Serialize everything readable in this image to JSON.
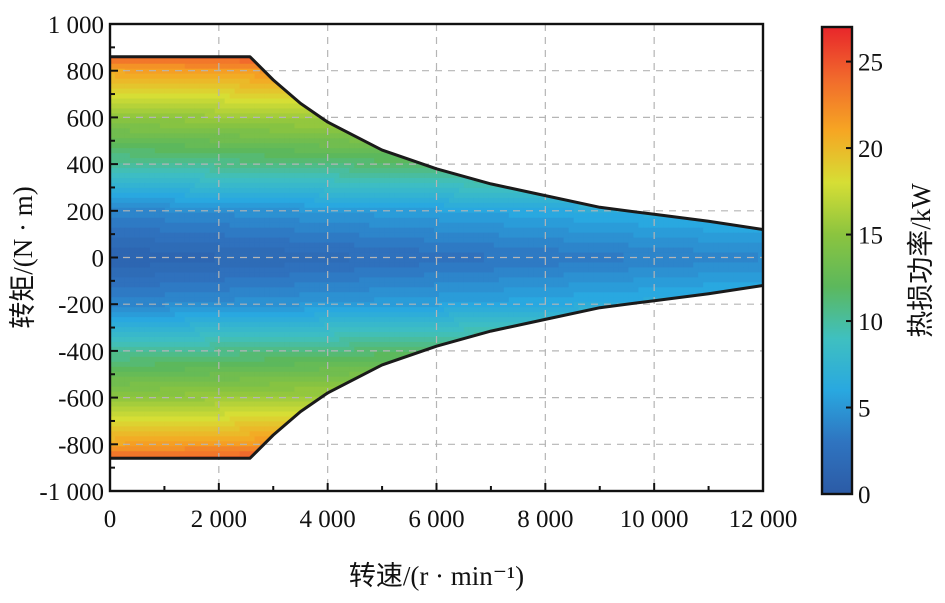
{
  "chart_data": {
    "type": "heatmap",
    "title": "",
    "xlabel": "转速/(r · min⁻¹)",
    "ylabel": "转矩/(N · m)",
    "colorbar_label": "热损功率/kW",
    "xlim": [
      0,
      12000
    ],
    "ylim": [
      -1000,
      1000
    ],
    "clim": [
      0,
      27
    ],
    "x_ticks": [
      0,
      2000,
      4000,
      6000,
      8000,
      10000,
      12000
    ],
    "x_tick_labels": [
      "0",
      "2 000",
      "4 000",
      "6 000",
      "8 000",
      "10 000",
      "12 000"
    ],
    "y_ticks": [
      1000,
      800,
      600,
      400,
      200,
      0,
      -200,
      -400,
      -600,
      -800,
      -1000
    ],
    "y_tick_labels": [
      "1 000",
      "800",
      "600",
      "400",
      "200",
      "0",
      "-200",
      "-400",
      "-600",
      "-800",
      "-1 000"
    ],
    "colorbar_ticks": [
      0,
      5,
      10,
      15,
      20,
      25
    ],
    "colorbar_tick_labels": [
      "0",
      "5",
      "10",
      "15",
      "20",
      "25"
    ],
    "grid": true,
    "colormap": [
      "#2c5ba6",
      "#2f74c0",
      "#29a8e0",
      "#3fc0c0",
      "#5cb85c",
      "#8bc43f",
      "#d6de35",
      "#f6a623",
      "#f16a2c",
      "#e8262b"
    ],
    "envelope": {
      "speed": [
        0,
        2570,
        3000,
        3500,
        4000,
        5000,
        6000,
        7000,
        8000,
        9000,
        10000,
        11000,
        12000
      ],
      "max_torque": [
        860,
        860,
        760,
        660,
        580,
        460,
        380,
        315,
        265,
        215,
        185,
        155,
        120
      ],
      "min_torque": [
        -860,
        -860,
        -760,
        -660,
        -580,
        -460,
        -380,
        -315,
        -265,
        -215,
        -185,
        -155,
        -120
      ]
    },
    "heat_loss_at_zero_speed": {
      "torque": [
        0,
        200,
        400,
        600,
        800,
        860
      ],
      "heat_loss_kw": [
        1,
        4,
        10,
        15,
        21,
        24
      ]
    }
  }
}
